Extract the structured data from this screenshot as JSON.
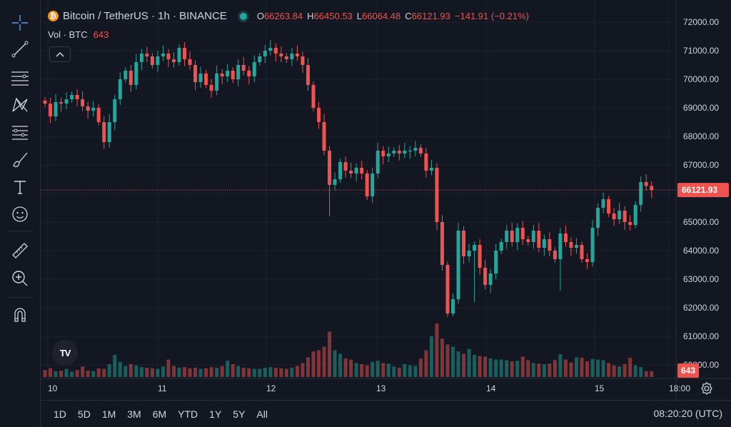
{
  "header": {
    "symbol_title": "Bitcoin / TetherUS · 1h · BINANCE",
    "coin_glyph": "₿",
    "ohlc": {
      "o_label": "O",
      "o_value": "66263.84",
      "h_label": "H",
      "h_value": "66450.53",
      "l_label": "L",
      "l_value": "66064.48",
      "c_label": "C",
      "c_value": "66121.93",
      "change": "−141.91 (−0.21%)"
    },
    "volume": {
      "label": "Vol · BTC",
      "value": "643"
    }
  },
  "colors": {
    "up": "#26a69a",
    "down": "#ef5350",
    "background": "#131722",
    "grid": "#1e222d",
    "text": "#d1d4dc",
    "coin": "#f7931a"
  },
  "toolbar": {
    "icons": [
      "crosshair-icon",
      "trend-line-icon",
      "horizontal-lines-icon",
      "pattern-icon",
      "fib-icon",
      "brush-icon",
      "text-icon",
      "emoji-icon",
      "ruler-icon",
      "zoom-in-icon",
      "magnet-icon"
    ]
  },
  "time_ranges": [
    "1D",
    "5D",
    "1M",
    "3M",
    "6M",
    "YTD",
    "1Y",
    "5Y",
    "All"
  ],
  "clock": "08:20:20 (UTC)",
  "logo_text": "TV",
  "chart_data": {
    "type": "candlestick",
    "interval": "1h",
    "ylim": [
      59500,
      72300
    ],
    "y_ticks": [
      "72000.00",
      "71000.00",
      "70000.00",
      "69000.00",
      "68000.00",
      "67000.00",
      "66000.00",
      "65000.00",
      "64000.00",
      "63000.00",
      "62000.00",
      "61000.00",
      "60000.00"
    ],
    "x_ticks": [
      "10",
      "11",
      "12",
      "13",
      "14",
      "15",
      "18:00"
    ],
    "last_price_label": "66121.93",
    "last_volume_label": "643",
    "grid": true,
    "anchors": [
      69250,
      69150,
      68700,
      69200,
      69150,
      69300,
      69450,
      69300,
      69050,
      68900,
      69000,
      68500,
      67800,
      68500,
      69300,
      70000,
      70300,
      69800,
      70600,
      70900,
      70800,
      70500,
      70800,
      70900,
      70700,
      70600,
      71100,
      70700,
      70500,
      69900,
      70200,
      69800,
      69600,
      70200,
      70100,
      70300,
      70000,
      70500,
      70300,
      70100,
      70600,
      70800,
      71000,
      71100,
      70900,
      70800,
      70700,
      70900,
      70800,
      70500,
      69800,
      69000,
      68500,
      67500,
      66300,
      66500,
      67100,
      66800,
      66700,
      66900,
      66700,
      65900,
      66700,
      67500,
      67300,
      67400,
      67500,
      67400,
      67500,
      67500,
      67600,
      67400,
      66800,
      66900,
      65000,
      63500,
      61800,
      62300,
      64700,
      63800,
      64000,
      64200,
      63400,
      62800,
      63200,
      64000,
      64300,
      64700,
      64300,
      64800,
      64400,
      64300,
      64700,
      64100,
      64400,
      64000,
      63700,
      64600,
      64300,
      64100,
      64200,
      63700,
      63600,
      64800,
      65500,
      65800,
      65300,
      65100,
      65400,
      65000,
      64900,
      65600,
      66400,
      66263.84,
      66121.93
    ],
    "volumes": [
      60,
      75,
      50,
      55,
      70,
      45,
      60,
      90,
      55,
      50,
      75,
      70,
      110,
      190,
      130,
      95,
      110,
      100,
      85,
      80,
      75,
      70,
      90,
      150,
      95,
      80,
      85,
      75,
      80,
      70,
      75,
      85,
      80,
      95,
      140,
      110,
      95,
      80,
      75,
      70,
      70,
      80,
      85,
      80,
      75,
      70,
      80,
      95,
      120,
      170,
      220,
      230,
      260,
      390,
      230,
      200,
      160,
      150,
      120,
      110,
      100,
      130,
      140,
      120,
      115,
      90,
      80,
      110,
      100,
      95,
      160,
      230,
      350,
      460,
      330,
      280,
      260,
      220,
      200,
      240,
      190,
      180,
      175,
      160,
      150,
      150,
      145,
      135,
      140,
      175,
      145,
      120,
      115,
      110,
      115,
      145,
      195,
      150,
      125,
      170,
      165,
      135,
      155,
      150,
      145,
      120,
      100,
      90,
      110,
      165,
      100,
      85,
      50,
      50,
      45
    ],
    "wick_low_spikes": [
      {
        "index": 12,
        "low": 67600
      },
      {
        "index": 53,
        "low": 65200
      },
      {
        "index": 76,
        "low": 61700
      },
      {
        "index": 80,
        "low": 62200
      },
      {
        "index": 96,
        "low": 62600
      }
    ]
  }
}
